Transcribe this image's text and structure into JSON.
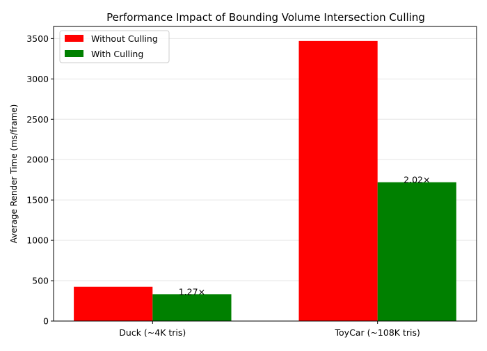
{
  "chart_data": {
    "type": "bar",
    "title": "Performance Impact of Bounding Volume Intersection Culling",
    "xlabel": "",
    "ylabel": "Average Render Time (ms/frame)",
    "categories": [
      "Duck (~4K tris)",
      "ToyCar (~108K tris)"
    ],
    "series": [
      {
        "name": "Without Culling",
        "color": "#ff0000",
        "values": [
          425,
          3470
        ]
      },
      {
        "name": "With Culling",
        "color": "#008000",
        "values": [
          333,
          1720
        ]
      }
    ],
    "annotations": [
      "1.27×",
      "2.02×"
    ],
    "ylim": [
      0,
      3650
    ],
    "yticks": [
      0,
      500,
      1000,
      1500,
      2000,
      2500,
      3000,
      3500
    ],
    "grid": "y",
    "legend_position": "top-left"
  }
}
